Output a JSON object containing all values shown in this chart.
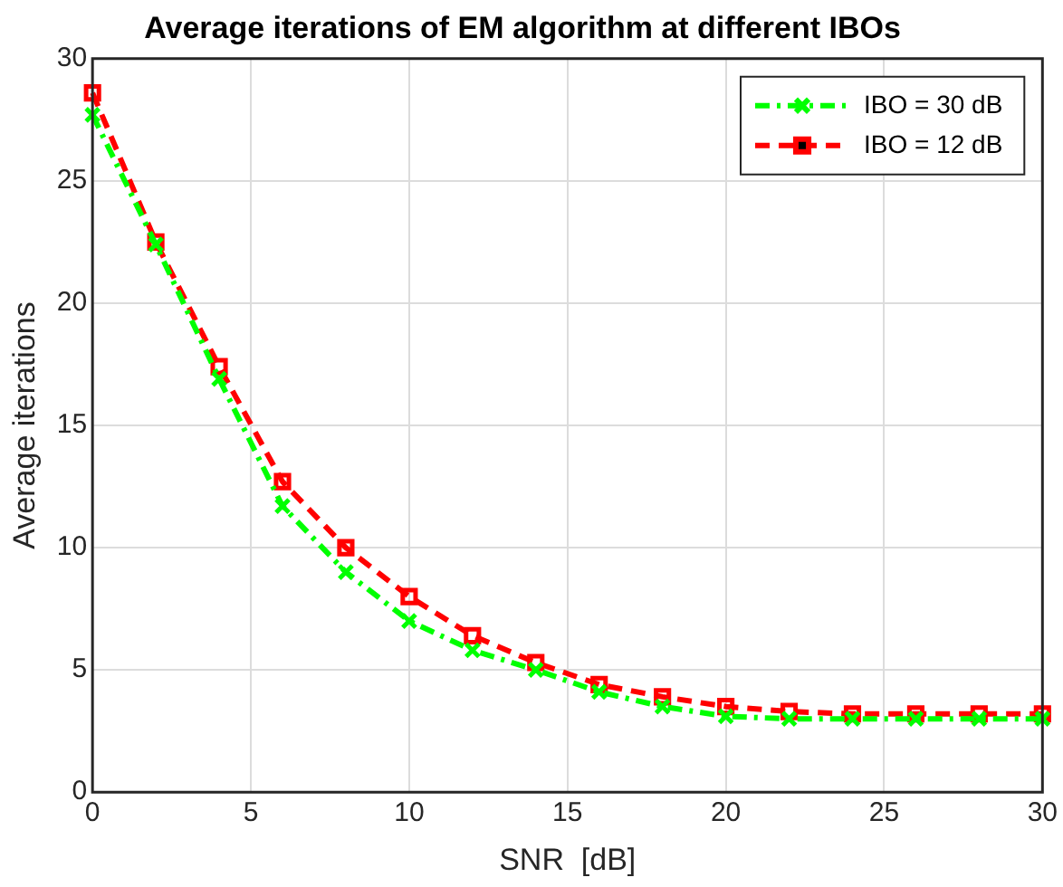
{
  "chart_data": {
    "type": "line",
    "title": "Average iterations of EM algorithm at different IBOs",
    "xlabel": "SNR  [dB]",
    "ylabel": "Average iterations",
    "x": [
      0,
      2,
      4,
      6,
      8,
      10,
      12,
      14,
      16,
      18,
      20,
      22,
      24,
      26,
      28,
      30
    ],
    "series": [
      {
        "name": "IBO = 30 dB",
        "color": "#00ff00",
        "marker": "cross",
        "line_style": "dashdot",
        "values": [
          27.7,
          22.4,
          16.9,
          11.7,
          9.0,
          7.0,
          5.8,
          5.0,
          4.1,
          3.5,
          3.1,
          3.0,
          3.0,
          3.0,
          3.0,
          3.0
        ]
      },
      {
        "name": "IBO = 12 dB",
        "color": "#ff0000",
        "marker": "square",
        "line_style": "dashed",
        "values": [
          28.6,
          22.5,
          17.4,
          12.7,
          10.0,
          8.0,
          6.4,
          5.3,
          4.4,
          3.9,
          3.5,
          3.3,
          3.2,
          3.2,
          3.2,
          3.2
        ]
      }
    ],
    "xlim": [
      0,
      30
    ],
    "xticks": [
      0,
      5,
      10,
      15,
      20,
      25,
      30
    ],
    "ylim": [
      0,
      30
    ],
    "yticks": [
      0,
      5,
      10,
      15,
      20,
      25,
      30
    ],
    "grid": true,
    "legend": "top right"
  }
}
